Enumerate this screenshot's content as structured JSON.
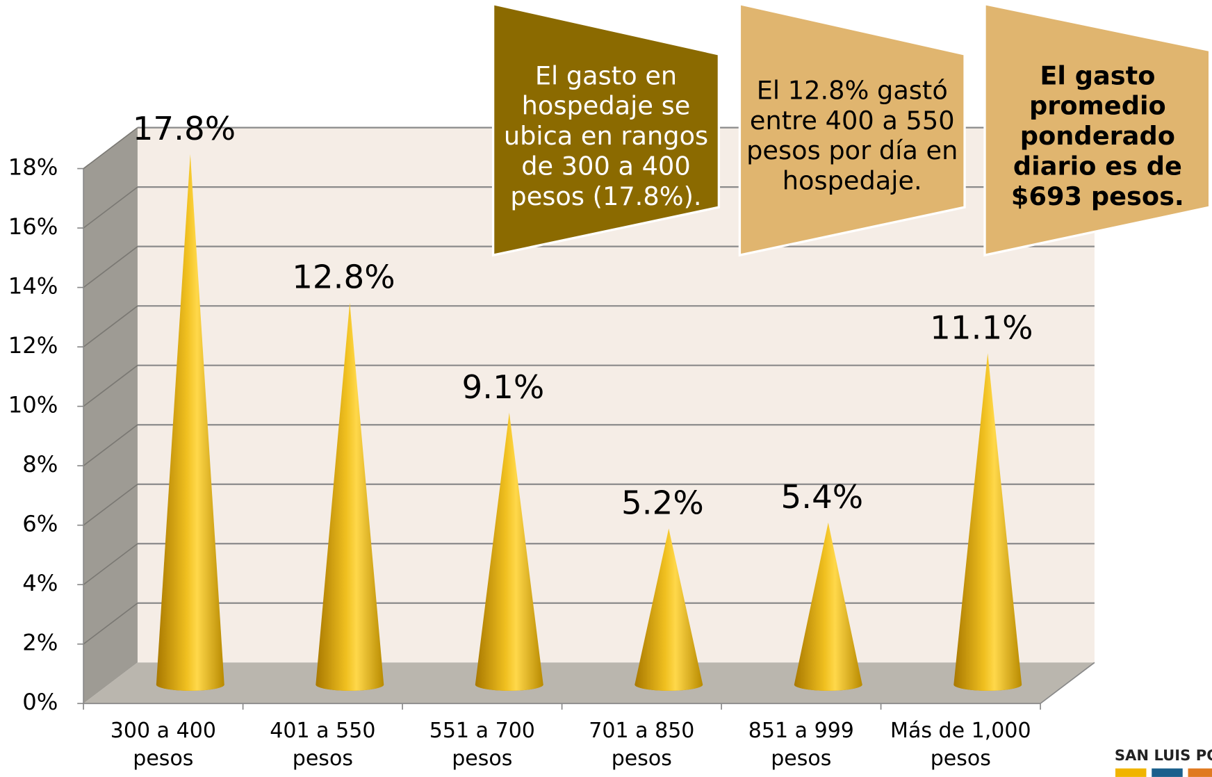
{
  "chart_data": {
    "type": "cone",
    "categories": [
      "300 a 400 pesos",
      "401 a 550 pesos",
      "551 a 700 pesos",
      "701 a 850 pesos",
      "851 a 999 pesos",
      "Más de 1,000 pesos"
    ],
    "values": [
      17.8,
      12.8,
      9.1,
      5.2,
      5.4,
      11.1
    ],
    "value_labels": [
      "17.8%",
      "12.8%",
      "9.1%",
      "5.2%",
      "5.4%",
      "11.1%"
    ],
    "color": "#e0a810",
    "ylim": [
      0,
      18
    ],
    "yticks": [
      {
        "value": 0,
        "label": "0%"
      },
      {
        "value": 2,
        "label": "2%"
      },
      {
        "value": 4,
        "label": "4%"
      },
      {
        "value": 6,
        "label": "6%"
      },
      {
        "value": 8,
        "label": "8%"
      },
      {
        "value": 10,
        "label": "10%"
      },
      {
        "value": 12,
        "label": "12%"
      },
      {
        "value": 14,
        "label": "14%"
      },
      {
        "value": 16,
        "label": "16%"
      },
      {
        "value": 18,
        "label": "18%"
      }
    ],
    "grid": true,
    "annotations": [
      "El gasto en hospedaje se ubica en rangos de 300 a 400 pesos (17.8%).",
      "El 12.8% gastó entre 400 a 550 pesos por día en hospedaje.",
      "El gasto promedio ponderado diario es de $693 pesos."
    ],
    "logo_text": "SAN LUIS PO"
  }
}
